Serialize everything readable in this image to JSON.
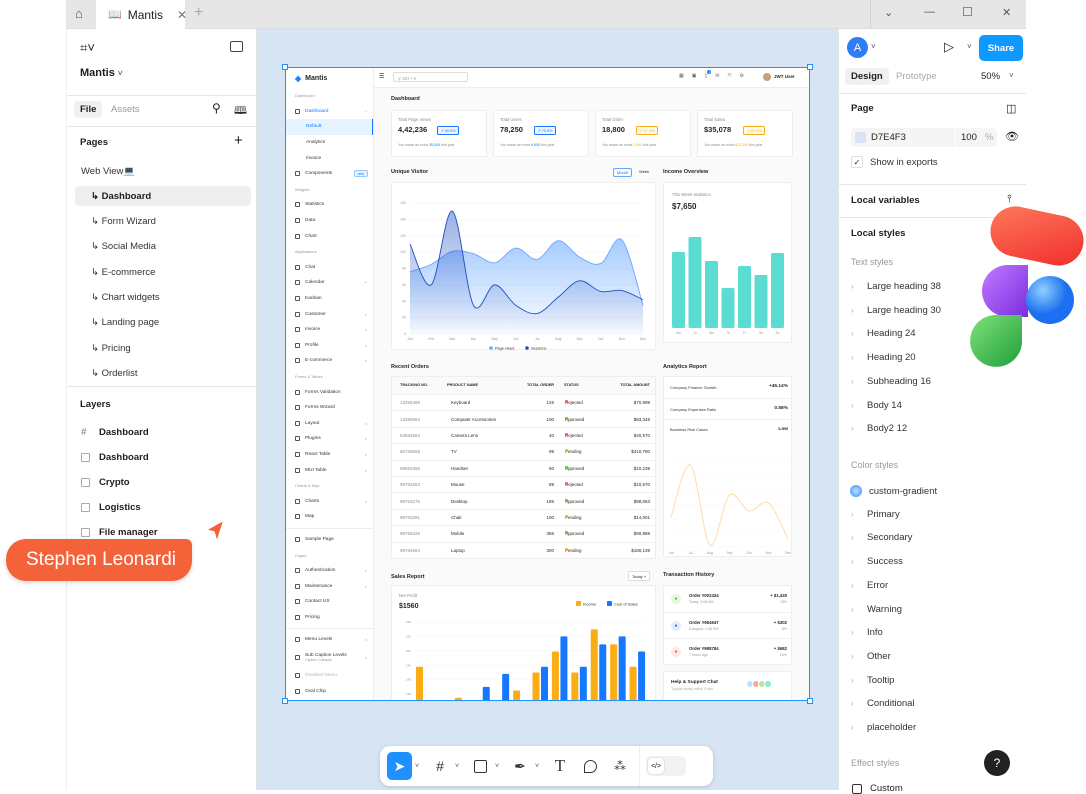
{
  "window": {
    "tab_title": "Mantis",
    "new_tab": "+",
    "controls": [
      "⌄",
      "—",
      "☐",
      "✕"
    ]
  },
  "left_panel": {
    "file_name": "Mantis",
    "tabs": [
      "File",
      "Assets"
    ],
    "pages_title": "Pages",
    "pages": [
      {
        "label": "Web View💻",
        "selected": false
      },
      {
        "label": "↳ Dashboard",
        "selected": true
      },
      {
        "label": "↳ Form Wizard",
        "selected": false
      },
      {
        "label": "↳ Social Media",
        "selected": false
      },
      {
        "label": "↳ E-commerce",
        "selected": false
      },
      {
        "label": "↳ Chart widgets",
        "selected": false
      },
      {
        "label": "↳ Landing page",
        "selected": false
      },
      {
        "label": "↳ Pricing",
        "selected": false
      },
      {
        "label": "↳ Orderlist",
        "selected": false
      }
    ],
    "layers_title": "Layers",
    "layers": [
      {
        "label": "Dashboard",
        "icon": "frame-icon"
      },
      {
        "label": "Dashboard",
        "icon": "section-icon"
      },
      {
        "label": "Crypto",
        "icon": "section-icon"
      },
      {
        "label": "Logistics",
        "icon": "section-icon"
      },
      {
        "label": "File manager",
        "icon": "section-icon"
      }
    ]
  },
  "cursor_tag": {
    "name": "Stephen Leonardi",
    "color": "#f4623a"
  },
  "right_panel": {
    "avatar_letter": "A",
    "share": "Share",
    "tabs": [
      "Design",
      "Prototype"
    ],
    "zoom": "50%",
    "page_title": "Page",
    "page_color": "D7E4F3",
    "page_color_hex": "#D7E4F3",
    "opacity": "100",
    "opacity_unit": "%",
    "show_in_exports": "Show in exports",
    "local_variables": "Local variables",
    "local_styles": "Local styles",
    "text_styles_title": "Text styles",
    "text_styles": [
      "Large heading 38",
      "Large heading 30",
      "Heading 24",
      "Heading 20",
      "Subheading 16",
      "Body 14",
      "Body2 12"
    ],
    "color_styles_title": "Color styles",
    "color_styles": [
      "custom-gradient",
      "Primary",
      "Secondary",
      "Success",
      "Error",
      "Warning",
      "Info",
      "Other",
      "Tooltip",
      "Conditional",
      "placeholder"
    ],
    "effect_styles_title": "Effect styles",
    "effect_styles": [
      "Custom"
    ],
    "help": "?"
  },
  "toolbar": {
    "tools": [
      "move-tool",
      "frame-tool",
      "shape-tool",
      "pen-tool",
      "text-tool",
      "comment-tool",
      "actions-tool"
    ],
    "text_glyph": "T",
    "dev_mode": "</>"
  },
  "dashboard": {
    "brand": "Mantis",
    "search_placeholder": "Ctrl + K",
    "user": "JWT User",
    "notification_count": "2",
    "sidebar": [
      {
        "t": "cap",
        "label": "Dashboard"
      },
      {
        "t": "item",
        "label": "Dashboard",
        "active": true,
        "chev": "^"
      },
      {
        "t": "sub",
        "label": "Default",
        "selected": true
      },
      {
        "t": "sub",
        "label": "Analytics"
      },
      {
        "t": "sub",
        "label": "Invoice"
      },
      {
        "t": "item",
        "label": "Components",
        "badge": "new"
      },
      {
        "t": "cap",
        "label": "Widgets"
      },
      {
        "t": "item",
        "label": "Statistics"
      },
      {
        "t": "item",
        "label": "Data"
      },
      {
        "t": "item",
        "label": "Chart"
      },
      {
        "t": "cap",
        "label": "Applications"
      },
      {
        "t": "item",
        "label": "Chat"
      },
      {
        "t": "item",
        "label": "Calendar",
        "chev": "↗"
      },
      {
        "t": "item",
        "label": "Kanban"
      },
      {
        "t": "item",
        "label": "Customer",
        "chev": "v"
      },
      {
        "t": "item",
        "label": "Invoice",
        "chev": "v"
      },
      {
        "t": "item",
        "label": "Profile",
        "chev": "v"
      },
      {
        "t": "item",
        "label": "E-commerce",
        "chev": "v"
      },
      {
        "t": "cap",
        "label": "Forms & Tables"
      },
      {
        "t": "item",
        "label": "Forms Validation"
      },
      {
        "t": "item",
        "label": "Forms Wizard"
      },
      {
        "t": "item",
        "label": "Layout",
        "chev": "v"
      },
      {
        "t": "item",
        "label": "Plugins",
        "chev": "v"
      },
      {
        "t": "item",
        "label": "React Table",
        "chev": "v"
      },
      {
        "t": "item",
        "label": "MUI Table",
        "chev": "v"
      },
      {
        "t": "cap",
        "label": "Charts & Map"
      },
      {
        "t": "item",
        "label": "Charts",
        "chev": "v"
      },
      {
        "t": "item",
        "label": "Map"
      },
      {
        "t": "div"
      },
      {
        "t": "item",
        "label": "Sample Page"
      },
      {
        "t": "cap",
        "label": "Pages"
      },
      {
        "t": "item",
        "label": "Authentication",
        "chev": "v"
      },
      {
        "t": "item",
        "label": "Maintenance",
        "chev": "v"
      },
      {
        "t": "item",
        "label": "Contact US"
      },
      {
        "t": "item",
        "label": "Pricing"
      },
      {
        "t": "div"
      },
      {
        "t": "item",
        "label": "Menu Levels",
        "chev": "v"
      },
      {
        "t": "item",
        "label": "Sub Caption Levels",
        "caption": "Caption Collapse",
        "chev": "v"
      },
      {
        "t": "item",
        "label": "Disabled Menu",
        "disabled": true
      },
      {
        "t": "item",
        "label": "Oval Chip"
      }
    ],
    "page_title": "Dashboard",
    "stats": [
      {
        "label": "Total Page Views",
        "value": "4,42,236",
        "change": "59.3%",
        "note_pre": "You made an extra",
        "note_val": "35,000",
        "note_post": "this year",
        "color": "#1677ff"
      },
      {
        "label": "Total Users",
        "value": "78,250",
        "change": "70.5%",
        "note_pre": "You made an extra",
        "note_val": "8,900",
        "note_post": "this year",
        "color": "#1677ff"
      },
      {
        "label": "Total Order",
        "value": "18,800",
        "change": "27.4%",
        "note_pre": "You made an extra",
        "note_val": "1,943",
        "note_post": "this year",
        "color": "#faad14"
      },
      {
        "label": "Total Sales",
        "value": "$35,078",
        "change": "27.4%",
        "note_pre": "You made an extra",
        "note_val": "$20,395",
        "note_post": "this year",
        "color": "#faad14"
      }
    ],
    "unique_visitor": {
      "title": "Unique Visitor",
      "toggle": [
        "Month",
        "Week"
      ]
    },
    "income": {
      "title": "Income Overview",
      "subtitle": "This Week Statistics",
      "value": "$7,650"
    },
    "recent_orders": {
      "title": "Recent Orders",
      "columns": [
        "TRACKING NO.",
        "PRODUCT NAME",
        "TOTAL ORDER",
        "STATUS",
        "TOTAL AMOUNT"
      ],
      "rows": [
        [
          "13256498",
          "Keyboard",
          "125",
          "Rejected",
          "$70,999"
        ],
        [
          "13286564",
          "Computer Accessories",
          "100",
          "Approved",
          "$83,348"
        ],
        [
          "84564564",
          "Camera Lens",
          "40",
          "Rejected",
          "$40,570"
        ],
        [
          "86739658",
          "TV",
          "99",
          "Pending",
          "$410,780"
        ],
        [
          "98652366",
          "Handset",
          "50",
          "Approved",
          "$10,239"
        ],
        [
          "98753263",
          "Mouse",
          "89",
          "Rejected",
          "$10,570"
        ],
        [
          "98753275",
          "Desktop",
          "185",
          "Approved",
          "$98,063"
        ],
        [
          "98753291",
          "Chair",
          "100",
          "Pending",
          "$14,001"
        ],
        [
          "98756325",
          "Mobile",
          "355",
          "Approved",
          "$90,989"
        ],
        [
          "98764564",
          "Laptop",
          "300",
          "Pending",
          "$180,139"
        ]
      ],
      "status_colors": {
        "Rejected": "#ff4d4f",
        "Approved": "#52c41a",
        "Pending": "#faad14"
      }
    },
    "analytics": {
      "title": "Analytics Report",
      "rows": [
        [
          "Company Finance Growth",
          "+45.14%"
        ],
        [
          "Company Expenses Ratio",
          "0.58%"
        ],
        [
          "Business Risk Cases",
          "Low"
        ]
      ]
    },
    "sales_report": {
      "title": "Sales Report",
      "filter": "Today",
      "subtitle": "Net Profit",
      "value": "$1560"
    },
    "transactions": {
      "title": "Transaction History",
      "items": [
        {
          "order": "Order #002434",
          "time": "Today, 2:00 AM",
          "amount": "+ $1,430",
          "pct": "78%",
          "color": "#52c41a",
          "icon": "gift-icon"
        },
        {
          "order": "Order #984947",
          "time": "5 August, 1:45 PM",
          "amount": "+ $302",
          "pct": "8%",
          "color": "#1677ff",
          "icon": "message-icon"
        },
        {
          "order": "Order #988784",
          "time": "7 hours ago",
          "amount": "+ $682",
          "pct": "16%",
          "color": "#ff4d4f",
          "icon": "settings-icon"
        }
      ]
    },
    "support": {
      "title": "Help & Support Chat",
      "subtitle": "Typical replay within 5 min"
    }
  },
  "chart_data": [
    {
      "type": "area",
      "title": "Unique Visitor",
      "categories": [
        "Jan",
        "Feb",
        "Mar",
        "Apr",
        "May",
        "Jun",
        "Jul",
        "Aug",
        "Sep",
        "Oct",
        "Nov",
        "Dec"
      ],
      "ylim": [
        0,
        160
      ],
      "yticks": [
        0,
        20,
        40,
        60,
        80,
        100,
        120,
        140,
        160
      ],
      "grid": true,
      "legend": "bottom",
      "series": [
        {
          "name": "Page views",
          "color": "#69a7ff",
          "values": [
            76,
            85,
            101,
            98,
            87,
            105,
            91,
            114,
            94,
            86,
            115,
            35
          ]
        },
        {
          "name": "Sessions",
          "color": "#1d4fc4",
          "values": [
            110,
            60,
            150,
            35,
            60,
            35,
            25,
            45,
            65,
            52,
            53,
            42
          ]
        }
      ]
    },
    {
      "type": "bar",
      "title": "This Week Statistics",
      "categories": [
        "Mo",
        "Tu",
        "We",
        "Th",
        "Fr",
        "Sa",
        "Su"
      ],
      "values": [
        76,
        91,
        67,
        40,
        62,
        53,
        75
      ],
      "color": "#5cdbd3"
    },
    {
      "type": "line",
      "title": "Business Risk Cases",
      "categories": [
        "Jun",
        "Jul",
        "Aug",
        "Sep",
        "Oct",
        "Nov",
        "Dec"
      ],
      "values": [
        30,
        82,
        2,
        52,
        36,
        44,
        8
      ],
      "color": "#ffd591"
    },
    {
      "type": "bar",
      "title": "Net Profit",
      "yticks": [
        80,
        100,
        120,
        140,
        160,
        180,
        200,
        220,
        240
      ],
      "ylim": [
        0,
        240
      ],
      "legend": "top-right",
      "series": [
        {
          "name": "Income",
          "color": "#faad14",
          "values": [
            178,
            70,
            135,
            113,
            119,
            145,
            170,
            199,
            170,
            230,
            209,
            178
          ]
        },
        {
          "name": "Cost of Sales",
          "color": "#1677ff",
          "values": [
            120,
            50,
            78,
            150,
            168,
            98,
            178,
            220,
            178,
            209,
            220,
            199
          ]
        }
      ]
    }
  ]
}
